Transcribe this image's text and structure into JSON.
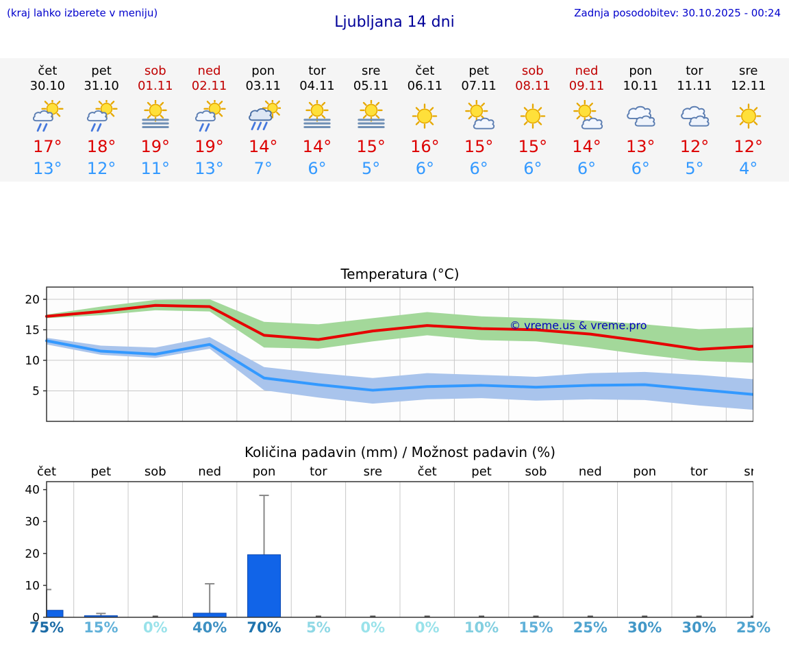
{
  "header": {
    "menu_hint": "(kraj lahko izberete v meniju)",
    "title": "Ljubljana 14 dni",
    "last_update": "Zadnja posodobitev: 30.10.2025 - 00:24"
  },
  "colors": {
    "link_blue": "#0000cc",
    "title_blue": "#000099",
    "weekend_red": "#c00000",
    "tmax_red": "#dd0000",
    "tmin_blue": "#3399ff",
    "strip_background": "#f5f5f5",
    "bar_blue": "#1164e8",
    "watermark_blue": "#0000bb"
  },
  "forecast": {
    "days": [
      {
        "day": "čet",
        "date": "30.10",
        "weekend": false,
        "icon": "sun-rain",
        "tmax": "17°",
        "tmin": "13°"
      },
      {
        "day": "pet",
        "date": "31.10",
        "weekend": false,
        "icon": "sun-rain",
        "tmax": "18°",
        "tmin": "12°"
      },
      {
        "day": "sob",
        "date": "01.11",
        "weekend": true,
        "icon": "sun-fog",
        "tmax": "19°",
        "tmin": "11°"
      },
      {
        "day": "ned",
        "date": "02.11",
        "weekend": true,
        "icon": "sun-rain",
        "tmax": "19°",
        "tmin": "13°"
      },
      {
        "day": "pon",
        "date": "03.11",
        "weekend": false,
        "icon": "rain-sun",
        "tmax": "14°",
        "tmin": "7°"
      },
      {
        "day": "tor",
        "date": "04.11",
        "weekend": false,
        "icon": "sun-fog",
        "tmax": "14°",
        "tmin": "6°"
      },
      {
        "day": "sre",
        "date": "05.11",
        "weekend": false,
        "icon": "sun-fog",
        "tmax": "15°",
        "tmin": "5°"
      },
      {
        "day": "čet",
        "date": "06.11",
        "weekend": false,
        "icon": "sun",
        "tmax": "16°",
        "tmin": "6°"
      },
      {
        "day": "pet",
        "date": "07.11",
        "weekend": false,
        "icon": "sun-cloud",
        "tmax": "15°",
        "tmin": "6°"
      },
      {
        "day": "sob",
        "date": "08.11",
        "weekend": true,
        "icon": "sun",
        "tmax": "15°",
        "tmin": "6°"
      },
      {
        "day": "ned",
        "date": "09.11",
        "weekend": true,
        "icon": "sun-cloud",
        "tmax": "14°",
        "tmin": "6°"
      },
      {
        "day": "pon",
        "date": "10.11",
        "weekend": false,
        "icon": "cloudy",
        "tmax": "13°",
        "tmin": "6°"
      },
      {
        "day": "tor",
        "date": "11.11",
        "weekend": false,
        "icon": "cloudy",
        "tmax": "12°",
        "tmin": "5°"
      },
      {
        "day": "sre",
        "date": "12.11",
        "weekend": false,
        "icon": "sun",
        "tmax": "12°",
        "tmin": "4°"
      }
    ]
  },
  "chart_data": [
    {
      "type": "line",
      "title": "Temperatura (°C)",
      "watermark": "© vreme.us & vreme.pro",
      "ylim": [
        0,
        22
      ],
      "yticks": [
        5,
        10,
        15,
        20
      ],
      "x_days": [
        "čet",
        "pet",
        "sob",
        "ned",
        "pon",
        "tor",
        "sre",
        "čet",
        "pet",
        "sob",
        "ned",
        "pon",
        "tor",
        "sre"
      ],
      "series": [
        {
          "name": "max-temperature",
          "color": "#e60000",
          "values": [
            17.2,
            18.0,
            19.0,
            18.8,
            14.1,
            13.4,
            14.8,
            15.7,
            15.2,
            15.0,
            14.3,
            13.1,
            11.8,
            12.3
          ]
        },
        {
          "name": "min-temperature",
          "color": "#3399ff",
          "values": [
            13.2,
            11.5,
            11.0,
            12.6,
            7.1,
            6.0,
            5.1,
            5.7,
            5.9,
            5.6,
            5.9,
            6.0,
            5.2,
            4.4
          ]
        }
      ],
      "bands": [
        {
          "name": "max-temperature-range",
          "color": "#a3d89a",
          "upper": [
            17.5,
            18.8,
            19.9,
            20.0,
            16.3,
            15.9,
            16.9,
            17.9,
            17.2,
            16.9,
            16.5,
            15.9,
            15.1,
            15.4
          ],
          "lower": [
            16.9,
            17.4,
            18.2,
            18.0,
            12.1,
            11.9,
            13.1,
            14.1,
            13.3,
            13.1,
            12.1,
            10.9,
            9.9,
            9.6
          ]
        },
        {
          "name": "min-temperature-range",
          "color": "#a9c4ec",
          "upper": [
            13.7,
            12.4,
            12.1,
            13.8,
            8.9,
            7.9,
            7.1,
            7.9,
            7.6,
            7.3,
            7.9,
            8.1,
            7.6,
            6.9
          ],
          "lower": [
            12.6,
            10.9,
            10.4,
            11.9,
            5.1,
            3.9,
            2.9,
            3.6,
            3.8,
            3.4,
            3.6,
            3.5,
            2.6,
            1.9
          ]
        }
      ]
    },
    {
      "type": "bar",
      "title": "Količina padavin (mm) / Možnost padavin (%)",
      "categories": [
        "čet",
        "pet",
        "sob",
        "ned",
        "pon",
        "tor",
        "sre",
        "čet",
        "pet",
        "sob",
        "ned",
        "pon",
        "tor",
        "sre"
      ],
      "values": [
        2.2,
        0.5,
        0,
        1.3,
        19.6,
        0,
        0,
        0,
        0,
        0,
        0,
        0,
        0,
        0
      ],
      "whisker_max": [
        8.7,
        1.2,
        0,
        10.5,
        38.2,
        0,
        0,
        0,
        0,
        0,
        0,
        0,
        0,
        0
      ],
      "ylim": [
        0,
        42.5
      ],
      "yticks": [
        0,
        10,
        20,
        30,
        40
      ],
      "bar_color": "#1164e8",
      "probabilities": [
        {
          "label": "75%",
          "color": "#1b6ba6"
        },
        {
          "label": "15%",
          "color": "#61b1d9"
        },
        {
          "label": "0%",
          "color": "#99e2ea"
        },
        {
          "label": "40%",
          "color": "#3d90c2"
        },
        {
          "label": "70%",
          "color": "#1f73ad"
        },
        {
          "label": "5%",
          "color": "#8ed8e5"
        },
        {
          "label": "0%",
          "color": "#99e2ea"
        },
        {
          "label": "0%",
          "color": "#99e2ea"
        },
        {
          "label": "10%",
          "color": "#83cfe0"
        },
        {
          "label": "15%",
          "color": "#61b1d9"
        },
        {
          "label": "25%",
          "color": "#4fa3cf"
        },
        {
          "label": "30%",
          "color": "#4297c7"
        },
        {
          "label": "30%",
          "color": "#4297c7"
        },
        {
          "label": "25%",
          "color": "#4fa3cf"
        }
      ]
    }
  ]
}
